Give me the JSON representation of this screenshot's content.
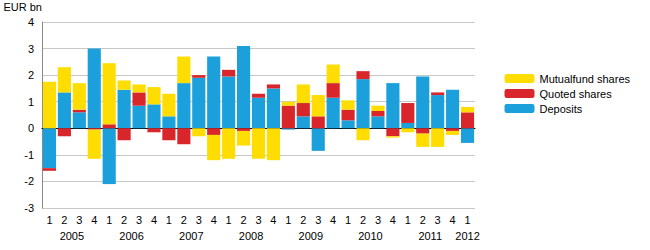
{
  "chart_data": {
    "type": "bar",
    "stacked": true,
    "grid": true,
    "legend": "right",
    "y_label": "EUR bn",
    "categories": [
      "1",
      "2",
      "3",
      "4",
      "1",
      "2",
      "3",
      "4",
      "1",
      "2",
      "3",
      "4",
      "1",
      "2",
      "3",
      "4",
      "1",
      "2",
      "3",
      "4",
      "1",
      "2",
      "3",
      "4",
      "1",
      "2",
      "3",
      "4",
      "1"
    ],
    "x_groups": [
      "2005",
      "2005",
      "2005",
      "2005",
      "2006",
      "2006",
      "2006",
      "2006",
      "2007",
      "2007",
      "2007",
      "2007",
      "2008",
      "2008",
      "2008",
      "2008",
      "2009",
      "2009",
      "2009",
      "2009",
      "2010",
      "2010",
      "2010",
      "2010",
      "2011",
      "2011",
      "2011",
      "2011",
      "2012"
    ],
    "ylim": [
      -3,
      4
    ],
    "yticks": [
      -3,
      -2,
      -1,
      0,
      1,
      2,
      3,
      4
    ],
    "series": [
      {
        "name": "Mutualfund shares",
        "color": "#ffdd00",
        "values": [
          1.75,
          0.95,
          1.0,
          -1.1,
          2.3,
          0.35,
          0.3,
          0.65,
          0.85,
          1.0,
          -0.3,
          -0.95,
          -1.15,
          -0.55,
          -1.15,
          -1.2,
          0.15,
          0.7,
          0.8,
          0.7,
          0.35,
          -0.45,
          0.2,
          -0.05,
          -0.15,
          -0.5,
          -0.7,
          -0.15,
          0.2
        ]
      },
      {
        "name": "Quoted shares",
        "color": "#d9262b",
        "values": [
          -0.1,
          -0.3,
          0.1,
          -0.05,
          0.15,
          -0.45,
          0.5,
          -0.15,
          -0.45,
          -0.6,
          0.1,
          -0.25,
          0.25,
          -0.1,
          0.15,
          0.15,
          0.85,
          0.5,
          0.45,
          0.55,
          0.4,
          0.3,
          0.2,
          -0.3,
          0.75,
          -0.2,
          0.1,
          -0.1,
          0.6
        ]
      },
      {
        "name": "Deposits",
        "color": "#1ca0dc",
        "values": [
          -1.5,
          1.35,
          0.6,
          3.0,
          -2.1,
          1.45,
          0.85,
          0.9,
          0.45,
          1.7,
          1.9,
          2.7,
          1.95,
          3.1,
          1.15,
          1.5,
          -0.05,
          0.45,
          -0.85,
          1.15,
          0.3,
          1.85,
          0.45,
          1.7,
          0.2,
          1.95,
          1.25,
          1.45,
          -0.55
        ]
      }
    ]
  }
}
